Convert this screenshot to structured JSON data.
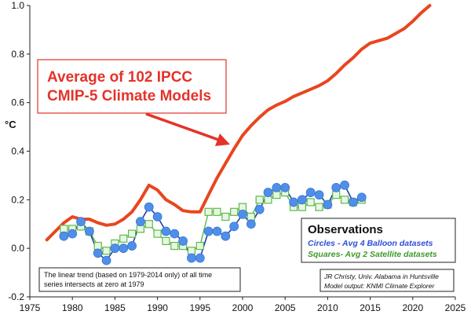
{
  "chart_data": {
    "type": "line",
    "ylabel": "°C",
    "xlim": [
      1975,
      2025
    ],
    "ylim": [
      -0.2,
      1.0
    ],
    "x_ticks": [
      "1975",
      "1980",
      "1985",
      "1990",
      "1995",
      "2000",
      "2005",
      "2010",
      "2015",
      "2020",
      "2025"
    ],
    "y_ticks": [
      "-0.2",
      "0.0",
      "0.2",
      "0.4",
      "0.6",
      "0.8",
      "1.0"
    ],
    "grid": false,
    "series": [
      {
        "name": "Average of 102 IPCC CMIP-5 Climate Models",
        "color": "#e8461e",
        "marker": "none",
        "x": [
          1977,
          1978,
          1979,
          1980,
          1981,
          1982,
          1983,
          1984,
          1985,
          1986,
          1987,
          1988,
          1989,
          1990,
          1991,
          1992,
          1993,
          1994,
          1995,
          1996,
          1997,
          1998,
          1999,
          2000,
          2001,
          2002,
          2003,
          2004,
          2005,
          2006,
          2007,
          2008,
          2009,
          2010,
          2011,
          2012,
          2013,
          2014,
          2015,
          2016,
          2017,
          2018,
          2019,
          2020,
          2021,
          2022
        ],
        "y": [
          0.035,
          0.07,
          0.105,
          0.13,
          0.12,
          0.12,
          0.105,
          0.095,
          0.1,
          0.12,
          0.15,
          0.2,
          0.26,
          0.24,
          0.2,
          0.18,
          0.155,
          0.15,
          0.15,
          0.22,
          0.29,
          0.35,
          0.41,
          0.465,
          0.505,
          0.54,
          0.57,
          0.59,
          0.605,
          0.625,
          0.64,
          0.655,
          0.67,
          0.69,
          0.72,
          0.755,
          0.785,
          0.82,
          0.845,
          0.855,
          0.865,
          0.885,
          0.905,
          0.935,
          0.97,
          1.0
        ]
      },
      {
        "name": "Circles - Avg 4 Balloon datasets",
        "color": "#4f8fe8",
        "marker": "circle",
        "x": [
          1979,
          1980,
          1981,
          1982,
          1983,
          1984,
          1985,
          1986,
          1987,
          1988,
          1989,
          1990,
          1991,
          1992,
          1993,
          1994,
          1995,
          1996,
          1997,
          1998,
          1999,
          2000,
          2001,
          2002,
          2003,
          2004,
          2005,
          2006,
          2007,
          2008,
          2009,
          2010,
          2011,
          2012,
          2013,
          2014
        ],
        "y": [
          0.05,
          0.06,
          0.11,
          0.07,
          -0.02,
          -0.05,
          0.0,
          0.0,
          0.01,
          0.11,
          0.17,
          0.13,
          0.07,
          0.06,
          0.03,
          -0.04,
          -0.04,
          0.07,
          0.07,
          0.05,
          0.09,
          0.14,
          0.1,
          0.16,
          0.23,
          0.25,
          0.25,
          0.19,
          0.2,
          0.23,
          0.22,
          0.18,
          0.25,
          0.26,
          0.19,
          0.21
        ]
      },
      {
        "name": "Squares- Avg 2 Satellite datasets",
        "color": "#5fb84f",
        "marker": "square",
        "x": [
          1979,
          1980,
          1981,
          1982,
          1983,
          1984,
          1985,
          1986,
          1987,
          1988,
          1989,
          1990,
          1991,
          1992,
          1993,
          1994,
          1995,
          1996,
          1997,
          1998,
          1999,
          2000,
          2001,
          2002,
          2003,
          2004,
          2005,
          2006,
          2007,
          2008,
          2009,
          2010,
          2011,
          2012,
          2013,
          2014
        ],
        "y": [
          0.08,
          0.08,
          0.09,
          0.07,
          0.01,
          -0.01,
          0.02,
          0.04,
          0.06,
          0.08,
          0.1,
          0.06,
          0.03,
          0.01,
          0.01,
          -0.01,
          0.01,
          0.15,
          0.15,
          0.13,
          0.15,
          0.17,
          0.13,
          0.2,
          0.2,
          0.22,
          0.23,
          0.17,
          0.17,
          0.19,
          0.17,
          0.18,
          0.22,
          0.2,
          0.19,
          0.2
        ]
      }
    ],
    "annotations": {
      "model_label_line1": "Average of 102 IPCC",
      "model_label_line2": "CMIP-5 Climate Models",
      "observations_title": "Observations",
      "observations_circles": "Circles - Avg 4 Balloon datasets",
      "observations_squares": "Squares- Avg 2 Satellite datasets",
      "trend_note_line1": "The linear trend (based on 1979-2014 only) of all time",
      "trend_note_line2": "series intersects at zero at 1979",
      "credit_line1": "JR Christy, Univ. Alabama in Huntsville",
      "credit_line2": "Model output: KNMI Climate Explorer"
    }
  }
}
